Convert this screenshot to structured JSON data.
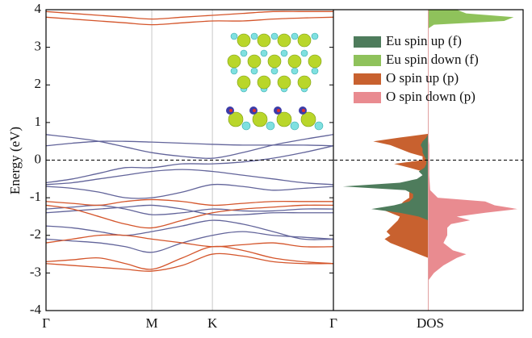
{
  "chart_data": [
    {
      "type": "line",
      "y_label": "Energy (eV)",
      "ylim": [
        -4,
        4
      ],
      "yticks": [
        -4,
        -3,
        -2,
        -1,
        0,
        1,
        2,
        3,
        4
      ],
      "xlim": [
        0,
        1
      ],
      "xticks": [
        {
          "value": 0,
          "label": "Γ"
        },
        {
          "value": 0.368,
          "label": "M"
        },
        {
          "value": 0.579,
          "label": "K"
        },
        {
          "value": 1,
          "label": "Γ"
        }
      ],
      "grid": true,
      "x": [
        0,
        0.092,
        0.184,
        0.276,
        0.368,
        0.474,
        0.579,
        0.684,
        0.79,
        0.895,
        1
      ],
      "series": [
        {
          "color": "#62649a",
          "values": [
            0.68,
            0.6,
            0.5,
            0.35,
            0.2,
            0.1,
            0.05,
            0.2,
            0.4,
            0.55,
            0.68
          ]
        },
        {
          "color": "#62649a",
          "values": [
            0.38,
            0.45,
            0.5,
            0.5,
            0.48,
            0.45,
            0.42,
            0.4,
            0.4,
            0.4,
            0.38
          ]
        },
        {
          "color": "#62649a",
          "values": [
            -0.6,
            -0.5,
            -0.35,
            -0.2,
            -0.2,
            -0.1,
            -0.1,
            -0.05,
            0.05,
            0.2,
            0.38
          ]
        },
        {
          "color": "#62649a",
          "values": [
            -0.65,
            -0.6,
            -0.5,
            -0.4,
            -0.3,
            -0.25,
            -0.3,
            -0.4,
            -0.5,
            -0.6,
            -0.65
          ]
        },
        {
          "color": "#62649a",
          "values": [
            -0.7,
            -0.75,
            -0.85,
            -1.0,
            -1.0,
            -0.85,
            -0.65,
            -0.7,
            -0.8,
            -0.75,
            -0.7
          ]
        },
        {
          "color": "#62649a",
          "values": [
            -1.4,
            -1.35,
            -1.3,
            -1.25,
            -1.2,
            -1.3,
            -1.45,
            -1.45,
            -1.4,
            -1.4,
            -1.4
          ]
        },
        {
          "color": "#62649a",
          "values": [
            -1.3,
            -1.25,
            -1.2,
            -1.3,
            -1.45,
            -1.4,
            -1.3,
            -1.35,
            -1.35,
            -1.3,
            -1.3
          ]
        },
        {
          "color": "#62649a",
          "values": [
            -1.75,
            -1.8,
            -1.9,
            -2.0,
            -1.9,
            -1.75,
            -1.6,
            -1.7,
            -1.9,
            -2.1,
            -2.1
          ]
        },
        {
          "color": "#62649a",
          "values": [
            -2.1,
            -2.15,
            -2.2,
            -2.3,
            -2.45,
            -2.2,
            -2.0,
            -1.9,
            -2.0,
            -2.05,
            -2.1
          ]
        },
        {
          "color": "#d4552b",
          "values": [
            3.95,
            3.9,
            3.85,
            3.8,
            3.75,
            3.8,
            3.85,
            3.9,
            3.95,
            3.95,
            3.95
          ]
        },
        {
          "color": "#d4552b",
          "values": [
            3.8,
            3.75,
            3.7,
            3.65,
            3.6,
            3.65,
            3.7,
            3.7,
            3.75,
            3.78,
            3.8
          ]
        },
        {
          "color": "#d4552b",
          "values": [
            -1.1,
            -1.15,
            -1.2,
            -1.1,
            -1.05,
            -1.1,
            -1.2,
            -1.15,
            -1.1,
            -1.1,
            -1.1
          ]
        },
        {
          "color": "#d4552b",
          "values": [
            -1.2,
            -1.3,
            -1.5,
            -1.7,
            -1.8,
            -1.6,
            -1.4,
            -1.3,
            -1.25,
            -1.2,
            -1.2
          ]
        },
        {
          "color": "#d4552b",
          "values": [
            -2.2,
            -2.1,
            -2.0,
            -2.0,
            -2.1,
            -2.2,
            -2.3,
            -2.25,
            -2.2,
            -2.3,
            -2.3
          ]
        },
        {
          "color": "#d4552b",
          "values": [
            -2.7,
            -2.65,
            -2.6,
            -2.75,
            -2.9,
            -2.6,
            -2.3,
            -2.4,
            -2.6,
            -2.7,
            -2.75
          ]
        },
        {
          "color": "#d4552b",
          "values": [
            -2.75,
            -2.8,
            -2.85,
            -2.9,
            -2.95,
            -2.8,
            -2.5,
            -2.55,
            -2.7,
            -2.75,
            -2.75
          ]
        }
      ]
    },
    {
      "type": "dos",
      "x_label": "DOS",
      "xlim": [
        -5,
        5
      ],
      "series": [
        {
          "name": "Eu spin up (f)",
          "color": "#4e7c5c",
          "y": [
            0.8,
            0.7,
            0.6,
            0.5,
            0.4,
            0.3,
            0.2,
            0.1,
            0,
            -0.1,
            -0.2,
            -0.3,
            -0.4,
            -0.5,
            -0.6,
            -0.7,
            -0.8,
            -0.9,
            -1.0,
            -1.1,
            -1.2,
            -1.3,
            -1.4,
            -1.5,
            -1.6
          ],
          "values": [
            0,
            0,
            -0.1,
            -0.3,
            -0.4,
            -0.3,
            -0.3,
            -0.2,
            -0.1,
            -0.1,
            -0.2,
            -0.5,
            -0.3,
            -0.6,
            -1.5,
            -4.5,
            -1.2,
            -0.8,
            -0.8,
            -1.0,
            -1.8,
            -3.0,
            -1.5,
            -0.5,
            0
          ]
        },
        {
          "name": "Eu spin down (f)",
          "color": "#8fc25b",
          "y": [
            3.5,
            3.6,
            3.7,
            3.8,
            3.9,
            4.0
          ],
          "values": [
            0,
            0.3,
            4.0,
            4.5,
            2.0,
            1.5
          ]
        },
        {
          "name": "O spin  up (p)",
          "color": "#c8612f",
          "y": [
            0.7,
            0.6,
            0.5,
            0.4,
            0.3,
            0.2,
            0.1,
            0,
            -0.1,
            -0.2,
            -0.3,
            -0.4,
            -0.5,
            -0.6,
            -0.7,
            -0.8,
            -0.9,
            -1.0,
            -1.1,
            -1.2,
            -1.3,
            -1.4,
            -1.5,
            -1.6,
            -1.7,
            -1.8,
            -1.9,
            -2.0,
            -2.1,
            -2.2,
            -2.3,
            -2.4,
            -2.5,
            -2.6
          ],
          "values": [
            0,
            -1.5,
            -2.9,
            -2.0,
            -1.5,
            -1.0,
            -0.3,
            -0.3,
            -1.8,
            -1.0,
            -0.3,
            -0.3,
            -0.5,
            -0.8,
            -1.0,
            -1.0,
            -1.0,
            -1.0,
            -1.3,
            -1.5,
            -2.5,
            -2.0,
            -1.5,
            -1.6,
            -1.8,
            -2.0,
            -2.2,
            -2.0,
            -2.3,
            -2.0,
            -1.5,
            -1.0,
            -0.5,
            0
          ]
        },
        {
          "name": "O spin  down (p)",
          "color": "#e98b90",
          "y": [
            0.6,
            0.4,
            0,
            -0.4,
            -0.8,
            -1.0,
            -1.1,
            -1.2,
            -1.3,
            -1.4,
            -1.5,
            -1.6,
            -1.7,
            -1.8,
            -2.0,
            -2.2,
            -2.4,
            -2.5,
            -2.6,
            -2.8,
            -3.0,
            -3.2
          ],
          "values": [
            0,
            0.05,
            0.05,
            0.05,
            0.1,
            0.5,
            3.0,
            3.5,
            4.7,
            3.0,
            1.5,
            2.2,
            1.2,
            1.0,
            1.0,
            0.8,
            1.3,
            2.0,
            1.5,
            0.8,
            0.3,
            0
          ]
        }
      ]
    }
  ]
}
